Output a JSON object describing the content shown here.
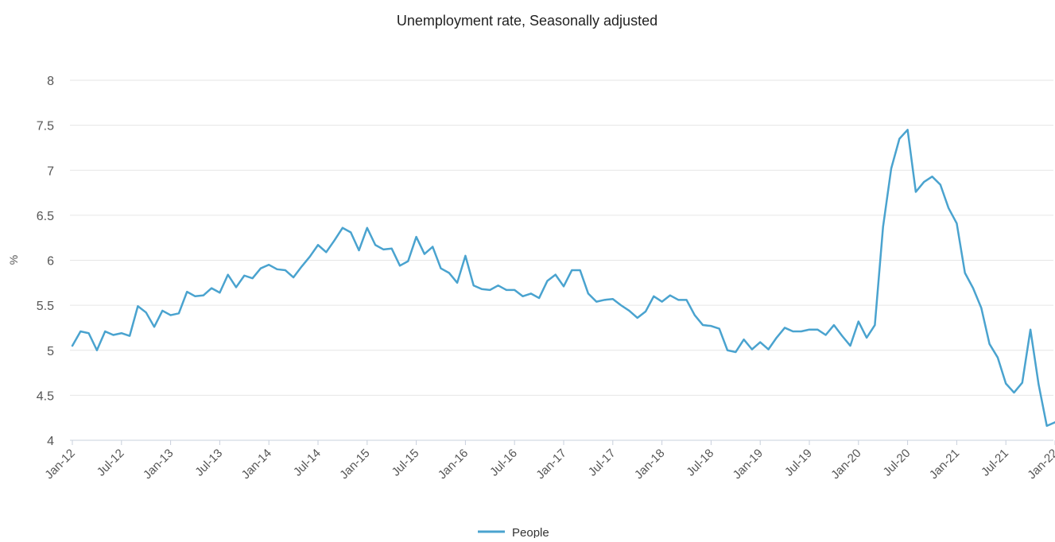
{
  "chart_data": {
    "type": "line",
    "title": "Unemployment rate, Seasonally adjusted",
    "ylabel": "%",
    "xlabel": "",
    "ylim": [
      4,
      8
    ],
    "yticks": [
      "4",
      "4.5",
      "5",
      "5.5",
      "6",
      "6.5",
      "7",
      "7.5",
      "8"
    ],
    "xticks": [
      "Jan-12",
      "Jul-12",
      "Jan-13",
      "Jul-13",
      "Jan-14",
      "Jul-14",
      "Jan-15",
      "Jul-15",
      "Jan-16",
      "Jul-16",
      "Jan-17",
      "Jul-17",
      "Jan-18",
      "Jul-18",
      "Jan-19",
      "Jul-19",
      "Jan-20",
      "Jul-20",
      "Jan-21",
      "Jul-21",
      "Jan-22"
    ],
    "grid": true,
    "legend_position": "bottom",
    "series": [
      {
        "name": "People",
        "color": "#4aa3cf",
        "values": [
          5.05,
          5.21,
          5.19,
          5.0,
          5.21,
          5.17,
          5.19,
          5.16,
          5.49,
          5.42,
          5.26,
          5.44,
          5.39,
          5.41,
          5.65,
          5.6,
          5.61,
          5.69,
          5.64,
          5.84,
          5.7,
          5.83,
          5.8,
          5.91,
          5.95,
          5.9,
          5.89,
          5.81,
          5.93,
          6.04,
          6.17,
          6.09,
          6.22,
          6.36,
          6.31,
          6.11,
          6.36,
          6.17,
          6.12,
          6.13,
          5.94,
          5.99,
          6.26,
          6.07,
          6.15,
          5.91,
          5.86,
          5.75,
          6.05,
          5.72,
          5.68,
          5.67,
          5.72,
          5.67,
          5.67,
          5.6,
          5.63,
          5.58,
          5.77,
          5.84,
          5.71,
          5.89,
          5.89,
          5.63,
          5.54,
          5.56,
          5.57,
          5.5,
          5.44,
          5.36,
          5.43,
          5.6,
          5.54,
          5.61,
          5.56,
          5.56,
          5.39,
          5.28,
          5.27,
          5.24,
          5.0,
          4.98,
          5.12,
          5.01,
          5.09,
          5.01,
          5.14,
          5.25,
          5.21,
          5.21,
          5.23,
          5.23,
          5.17,
          5.28,
          5.16,
          5.05,
          5.32,
          5.14,
          5.28,
          6.37,
          7.02,
          7.35,
          7.45,
          6.76,
          6.87,
          6.93,
          6.84,
          6.58,
          6.41,
          5.86,
          5.69,
          5.47,
          5.07,
          4.92,
          4.63,
          4.53,
          4.64,
          5.23,
          4.62,
          4.16,
          4.2
        ]
      }
    ]
  }
}
